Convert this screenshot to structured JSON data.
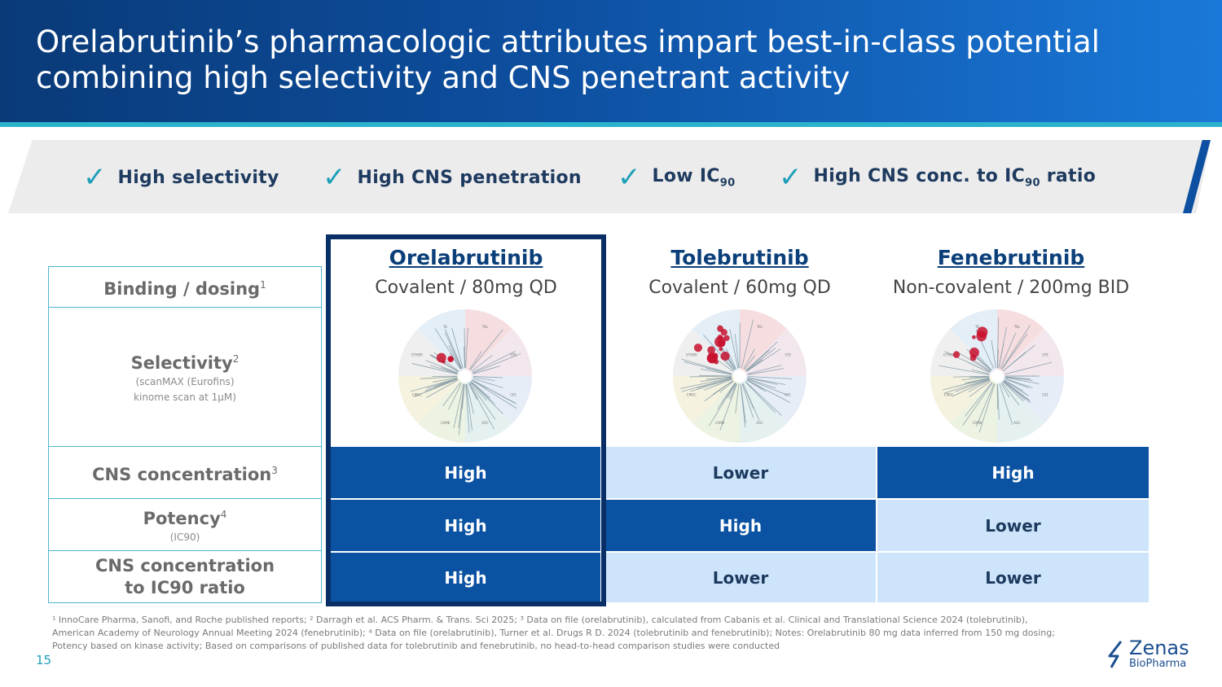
{
  "title": {
    "line1": "Orelabrutinib’s pharmacologic attributes impart best-in-class potential",
    "line2": "combining high selectivity and CNS penetrant activity"
  },
  "attributes": [
    {
      "label": "High selectivity"
    },
    {
      "label": "High CNS penetration"
    },
    {
      "label": "Low IC",
      "sub": "90"
    },
    {
      "label": "High CNS conc. to  IC",
      "sub": "90",
      "suffix": " ratio"
    }
  ],
  "rows": {
    "binding": {
      "label": "Binding / dosing",
      "sup": "1"
    },
    "selectivity": {
      "label": "Selectivity",
      "sup": "2",
      "note1": "(scanMAX (Eurofins)",
      "note2": "kinome scan at 1µM)"
    },
    "cns": {
      "label": "CNS concentration",
      "sup": "3"
    },
    "potency": {
      "label": "Potency",
      "sup": "4",
      "note": "(IC90)"
    },
    "ratio": {
      "label1": "CNS concentration",
      "label2": "to IC90 ratio"
    }
  },
  "drugs": [
    {
      "name": "Orelabrutinib",
      "dose": "Covalent / 80mg QD",
      "cns": "High",
      "potency": "High",
      "ratio": "High"
    },
    {
      "name": "Tolebrutinib",
      "dose": "Covalent / 60mg QD",
      "cns": "Lower",
      "potency": "High",
      "ratio": "Lower"
    },
    {
      "name": "Fenebrutinib",
      "dose": "Non-covalent / 200mg BID",
      "cns": "High",
      "potency": "Lower",
      "ratio": "Lower"
    }
  ],
  "kinome_group_labels": [
    "TK",
    "TKL",
    "STE",
    "CK1",
    "AGC",
    "CAMK",
    "CMGC",
    "OTHER"
  ],
  "footnote": {
    "line1": "¹ InnoCare Pharma, Sanofi, and Roche published reports; ² Darragh et al. ACS Pharm. & Trans. Sci 2025; ³ Data on file (orelabrutinib), calculated from Cabanis et al. Clinical and Translational Science 2024 (tolebrutinib),",
    "line2": "American Academy of Neurology Annual Meeting 2024 (fenebrutinib); ⁴ Data on file (orelabrutinib), Turner et al. Drugs R D. 2024 (tolebrutinib and fenebrutinib); Notes: Orelabrutinib 80 mg data inferred from 150 mg dosing;",
    "line3": "Potency based on kinase activity; Based on comparisons of published data for tolebrutinib and fenebrutinib, no head-to-head comparison studies were conducted"
  },
  "page_number": "15",
  "logo": {
    "name": "Zenas",
    "sub": "BioPharma"
  },
  "colors": {
    "dark_cell": "#0b52a3",
    "light_cell": "#cde4fb",
    "accent": "#1f9fb8",
    "frame": "#0a2f66"
  }
}
